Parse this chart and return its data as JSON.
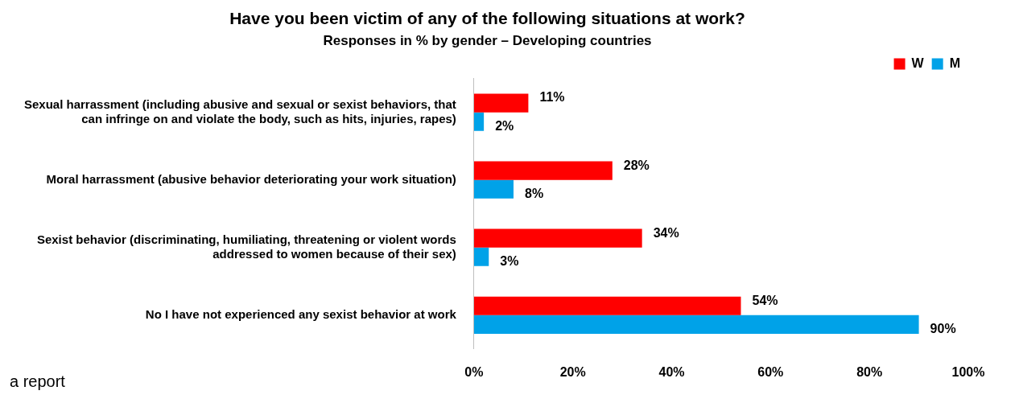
{
  "chart_data": {
    "type": "bar",
    "orientation": "horizontal",
    "title": "Have you been victim of any of the following situations at work?",
    "subtitle": "Responses in % by gender – Developing countries",
    "categories": [
      "Sexual harrassment (including abusive and sexual or sexist behaviors, that can infringe on and violate the body, such as hits, injuries, rapes)",
      "Moral harrassment (abusive behavior deteriorating your work situation)",
      "Sexist behavior (discriminating, humiliating, threatening or violent words addressed to women because of their sex)",
      "No I have not experienced any sexist behavior at work"
    ],
    "series": [
      {
        "name": "W",
        "color": "#ff0000",
        "values": [
          11,
          28,
          34,
          54
        ],
        "value_labels": [
          "11%",
          "28%",
          "34%",
          "54%"
        ]
      },
      {
        "name": "M",
        "color": "#00a2e8",
        "values": [
          2,
          8,
          3,
          90
        ],
        "value_labels": [
          "2%",
          "8%",
          "3%",
          "90%"
        ]
      }
    ],
    "xlim": [
      0,
      100
    ],
    "xticks": [
      {
        "value": 0,
        "label": "0%"
      },
      {
        "value": 20,
        "label": "20%"
      },
      {
        "value": 40,
        "label": "40%"
      },
      {
        "value": 60,
        "label": "60%"
      },
      {
        "value": 80,
        "label": "80%"
      },
      {
        "value": 100,
        "label": "100%"
      }
    ],
    "legend": "top right",
    "annotations": [
      "a report"
    ]
  }
}
